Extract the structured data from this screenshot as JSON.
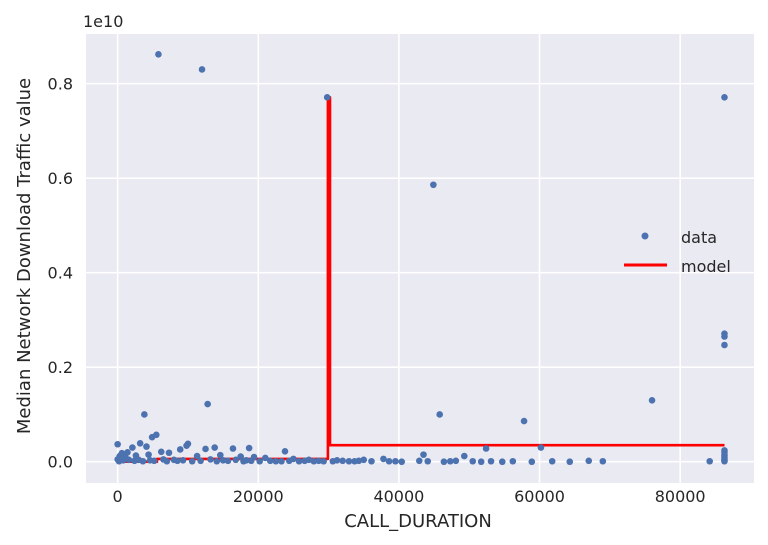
{
  "chart_data": {
    "type": "scatter",
    "xlabel": "CALL_DURATION",
    "ylabel": "Median Network Download Traffic value",
    "y_offset_label": "1e10",
    "y_scale": 10000000000,
    "xlim": [
      -4500,
      90500
    ],
    "ylim": [
      -0.045,
      0.905
    ],
    "xticks": [
      0,
      20000,
      40000,
      60000,
      80000
    ],
    "xtick_labels": [
      "0",
      "20000",
      "40000",
      "60000",
      "80000"
    ],
    "yticks": [
      0.0,
      0.2,
      0.4,
      0.6,
      0.8
    ],
    "ytick_labels": [
      "0.0",
      "0.2",
      "0.4",
      "0.6",
      "0.8"
    ],
    "grid": true,
    "background": "#eaeaf2",
    "legend_position": "right",
    "series": [
      {
        "name": "data",
        "kind": "points",
        "color": "#4c72b0",
        "points": [
          [
            5800,
            0.862
          ],
          [
            12000,
            0.83
          ],
          [
            29800,
            0.771
          ],
          [
            86300,
            0.771
          ],
          [
            44900,
            0.586
          ],
          [
            86300,
            0.271
          ],
          [
            86300,
            0.265
          ],
          [
            86300,
            0.247
          ],
          [
            76000,
            0.13
          ],
          [
            12800,
            0.122
          ],
          [
            3800,
            0.1
          ],
          [
            45800,
            0.1
          ],
          [
            57800,
            0.086
          ],
          [
            5500,
            0.057
          ],
          [
            4900,
            0.052
          ],
          [
            0,
            0.037
          ],
          [
            3200,
            0.039
          ],
          [
            10000,
            0.038
          ],
          [
            9800,
            0.034
          ],
          [
            2100,
            0.03
          ],
          [
            4100,
            0.032
          ],
          [
            13800,
            0.03
          ],
          [
            16400,
            0.028
          ],
          [
            18700,
            0.029
          ],
          [
            12500,
            0.027
          ],
          [
            8900,
            0.026
          ],
          [
            23800,
            0.022
          ],
          [
            6200,
            0.021
          ],
          [
            7300,
            0.019
          ],
          [
            1400,
            0.02
          ],
          [
            600,
            0.018
          ],
          [
            300,
            0.012
          ],
          [
            1100,
            0.01
          ],
          [
            2600,
            0.013
          ],
          [
            4400,
            0.015
          ],
          [
            11300,
            0.012
          ],
          [
            14600,
            0.014
          ],
          [
            17500,
            0.011
          ],
          [
            19400,
            0.01
          ],
          [
            21000,
            0.008
          ],
          [
            25000,
            0.006
          ],
          [
            27200,
            0.004
          ],
          [
            31200,
            0.003
          ],
          [
            35000,
            0.004
          ],
          [
            37800,
            0.006
          ],
          [
            43500,
            0.015
          ],
          [
            49300,
            0.012
          ],
          [
            52400,
            0.028
          ],
          [
            60200,
            0.03
          ],
          [
            67000,
            0.002
          ],
          [
            84200,
            0.001
          ],
          [
            0,
            0.005
          ],
          [
            200,
            0.001
          ],
          [
            800,
            0.003
          ],
          [
            1600,
            0.004
          ],
          [
            2400,
            0.002
          ],
          [
            3000,
            0.004
          ],
          [
            3600,
            0.001
          ],
          [
            4600,
            0.003
          ],
          [
            5200,
            0.002
          ],
          [
            6500,
            0.005
          ],
          [
            7000,
            0.001
          ],
          [
            8000,
            0.004
          ],
          [
            8500,
            0.002
          ],
          [
            9300,
            0.003
          ],
          [
            10600,
            0.001
          ],
          [
            11800,
            0.002
          ],
          [
            13200,
            0.005
          ],
          [
            14100,
            0.001
          ],
          [
            15000,
            0.003
          ],
          [
            15700,
            0.002
          ],
          [
            16800,
            0.004
          ],
          [
            17900,
            0.001
          ],
          [
            18300,
            0.003
          ],
          [
            19000,
            0.002
          ],
          [
            20200,
            0.001
          ],
          [
            21700,
            0.002
          ],
          [
            22500,
            0.001
          ],
          [
            23300,
            0.001
          ],
          [
            24400,
            0.002
          ],
          [
            25800,
            0.001
          ],
          [
            26600,
            0.002
          ],
          [
            27900,
            0.001
          ],
          [
            28600,
            0.002
          ],
          [
            29300,
            0.001
          ],
          [
            30600,
            0.001
          ],
          [
            32000,
            0.002
          ],
          [
            32900,
            0.001
          ],
          [
            33700,
            0.001
          ],
          [
            34300,
            0.002
          ],
          [
            36100,
            0.001
          ],
          [
            38600,
            0.001
          ],
          [
            39500,
            0.001
          ],
          [
            40400,
            0.0
          ],
          [
            42900,
            0.002
          ],
          [
            44100,
            0.001
          ],
          [
            46400,
            0.0
          ],
          [
            47300,
            0.001
          ],
          [
            48100,
            0.002
          ],
          [
            50500,
            0.001
          ],
          [
            51700,
            0.0
          ],
          [
            53100,
            0.001
          ],
          [
            54700,
            0.0
          ],
          [
            56200,
            0.001
          ],
          [
            58900,
            0.0
          ],
          [
            61800,
            0.001
          ],
          [
            64300,
            0.0
          ],
          [
            69000,
            0.001
          ],
          [
            86300,
            0.024
          ],
          [
            86300,
            0.02
          ],
          [
            86300,
            0.014
          ],
          [
            86300,
            0.01
          ],
          [
            86300,
            0.006
          ],
          [
            86300,
            0.003
          ],
          [
            86300,
            0.001
          ]
        ]
      },
      {
        "name": "model",
        "kind": "line",
        "color": "#ff0000",
        "points": [
          [
            0,
            0.0
          ],
          [
            5600,
            0.0
          ],
          [
            5600,
            0.006
          ],
          [
            29900,
            0.006
          ],
          [
            29900,
            0.771
          ],
          [
            30200,
            0.771
          ],
          [
            30200,
            0.035
          ],
          [
            86300,
            0.035
          ]
        ]
      }
    ]
  }
}
